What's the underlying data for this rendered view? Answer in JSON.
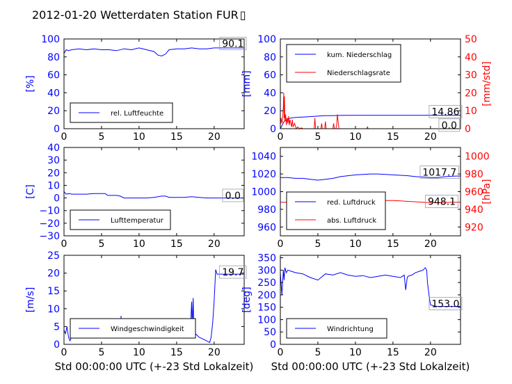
{
  "figure": {
    "title": "2012-01-20 Wetterdaten Station FUR",
    "title_trailing_glyph": "▯",
    "colors": {
      "primary": "#0000ff",
      "secondary": "#ff0000",
      "axis": "#000000"
    }
  },
  "chart_data": [
    {
      "type": "line",
      "xlim": [
        0,
        24
      ],
      "xticks": [
        "0",
        "5",
        "10",
        "15",
        "20"
      ],
      "ylabel": "[%]",
      "ylim": [
        0,
        100
      ],
      "yticks": [
        "0",
        "20",
        "40",
        "60",
        "80",
        "100"
      ],
      "legend": {
        "placement": "lower-left",
        "entries": [
          "rel. Luftfeuchte"
        ]
      },
      "annotations": [
        {
          "text": "90.1",
          "x": 22.5,
          "y": 95
        }
      ],
      "series": [
        {
          "name": "rel. Luftfeuchte",
          "color": "#0000ff",
          "x": [
            0,
            0.3,
            0.6,
            1,
            2,
            3,
            4,
            5,
            6,
            7,
            8,
            9,
            10,
            11,
            12,
            12.5,
            13,
            13.5,
            14,
            15,
            16,
            17,
            18,
            19,
            20,
            21,
            22,
            23,
            24
          ],
          "values": [
            84,
            88,
            87,
            88,
            89,
            88,
            89,
            88,
            88,
            87,
            89,
            88,
            90,
            88,
            86,
            82,
            81,
            83,
            88,
            89,
            89,
            90,
            89,
            89,
            90,
            90,
            90,
            90,
            90
          ]
        }
      ]
    },
    {
      "type": "line",
      "xlim": [
        0,
        24
      ],
      "xticks": [
        "0",
        "5",
        "10",
        "15",
        "20"
      ],
      "ylabel": "[mm]",
      "ylim": [
        0,
        100
      ],
      "yticks": [
        "0",
        "20",
        "40",
        "60",
        "80",
        "100"
      ],
      "ylabel2": "[mm/std]",
      "ylim2": [
        0,
        50
      ],
      "yticks2": [
        "0",
        "10",
        "20",
        "30",
        "40",
        "50"
      ],
      "legend": {
        "placement": "upper-left",
        "entries": [
          "kum. Niederschlag",
          "Niederschlagsrate"
        ]
      },
      "annotations": [
        {
          "text": "14.86",
          "x": 22,
          "y": 19
        },
        {
          "text": "0.0",
          "x": 22.5,
          "y": 4
        }
      ],
      "series": [
        {
          "name": "kum. Niederschlag",
          "axis": "left",
          "color": "#0000ff",
          "x": [
            0,
            0.5,
            1,
            1.5,
            2,
            3,
            4,
            5,
            6,
            7,
            8,
            9,
            10,
            12,
            15,
            18,
            20,
            22,
            24
          ],
          "values": [
            0,
            8,
            11,
            12,
            12.5,
            13,
            13.5,
            14,
            14.5,
            14.6,
            14.8,
            14.86,
            14.86,
            14.86,
            14.86,
            14.86,
            14.86,
            14.86,
            14.86
          ]
        },
        {
          "name": "Niederschlagsrate",
          "axis": "right",
          "color": "#ff0000",
          "x": [
            0,
            0.1,
            0.2,
            0.3,
            0.4,
            0.45,
            0.5,
            0.55,
            0.6,
            0.7,
            0.8,
            0.9,
            1.0,
            1.1,
            1.2,
            1.3,
            1.5,
            1.6,
            1.7,
            1.9,
            2.1,
            2.3,
            2.6,
            2.8,
            3.0,
            3.5,
            4.0,
            4.5,
            4.6,
            4.7,
            5.0,
            5.4,
            5.5,
            5.6,
            5.9,
            6.0,
            6.1,
            6.5,
            7.0,
            7.1,
            7.2,
            7.4,
            7.5,
            7.6,
            7.8,
            8.0,
            9.0,
            11.5,
            11.6,
            11.7,
            12.0,
            24
          ],
          "values": [
            2,
            6,
            3,
            5,
            12,
            20,
            6,
            18,
            4,
            8,
            2,
            6,
            3,
            7,
            2,
            5,
            1,
            5,
            1,
            3,
            0,
            1,
            0,
            0.5,
            0,
            0,
            0,
            0,
            6,
            0,
            0,
            0,
            3,
            0,
            0,
            4,
            0,
            0,
            0,
            3,
            0,
            0,
            2,
            8,
            0,
            0,
            0,
            0,
            1,
            0,
            0,
            0
          ]
        }
      ]
    },
    {
      "type": "line",
      "xlim": [
        0,
        24
      ],
      "xticks": [
        "0",
        "5",
        "10",
        "15",
        "20"
      ],
      "ylabel": "[C]",
      "ylim": [
        -30,
        40
      ],
      "yticks": [
        "−30",
        "−20",
        "−10",
        "0",
        "10",
        "20",
        "30",
        "40"
      ],
      "legend": {
        "placement": "lower-left",
        "entries": [
          "Lufttemperatur"
        ]
      },
      "annotations": [
        {
          "text": "0.0",
          "x": 22.5,
          "y": 2
        }
      ],
      "series": [
        {
          "name": "Lufttemperatur",
          "color": "#0000ff",
          "x": [
            0,
            0.3,
            0.7,
            1,
            2,
            3,
            4,
            5,
            5.5,
            5.8,
            6,
            7,
            7.5,
            8,
            9,
            10,
            11,
            12,
            13,
            13.5,
            14,
            15,
            16,
            17,
            18,
            19,
            20,
            21,
            22,
            23,
            24
          ],
          "values": [
            5,
            3,
            3.5,
            3,
            3,
            3,
            3.5,
            3.5,
            3.5,
            2,
            2,
            2,
            1.5,
            0,
            0,
            0,
            0,
            0.5,
            1.5,
            1.5,
            0.5,
            0.5,
            0.5,
            1,
            0.5,
            0,
            0,
            0,
            0,
            0,
            0
          ]
        }
      ]
    },
    {
      "type": "line",
      "xlim": [
        0,
        24
      ],
      "xticks": [
        "0",
        "5",
        "10",
        "15",
        "20"
      ],
      "ylabel": "",
      "ylim": [
        950,
        1050
      ],
      "yticks": [
        "960",
        "980",
        "1000",
        "1020",
        "1040"
      ],
      "ylabel2": "[hPa]",
      "ylim2": [
        910,
        1010
      ],
      "yticks2": [
        "920",
        "940",
        "960",
        "980",
        "1000"
      ],
      "legend": {
        "placement": "lower-left",
        "entries": [
          "red. Luftdruck",
          "abs. Luftdruck"
        ]
      },
      "annotations": [
        {
          "text": "1017.7",
          "x": 21.2,
          "y": 1022
        },
        {
          "text": "948.1",
          "x": 21.5,
          "y": 989
        }
      ],
      "series": [
        {
          "name": "red. Luftdruck",
          "axis": "left",
          "color": "#0000ff",
          "x": [
            0,
            1,
            2,
            3,
            4,
            5,
            6,
            7,
            8,
            9,
            10,
            11,
            12,
            13,
            14,
            15,
            16,
            17,
            18,
            19,
            20,
            21,
            22,
            23,
            24
          ],
          "values": [
            1016,
            1016,
            1015,
            1015,
            1014,
            1013,
            1014,
            1015,
            1017,
            1018,
            1019,
            1019.5,
            1020,
            1020,
            1019.5,
            1019,
            1018.5,
            1018,
            1017,
            1016.5,
            1016,
            1016,
            1017,
            1017.5,
            1017.7
          ]
        },
        {
          "name": "abs. Luftdruck",
          "axis": "right",
          "color": "#ff0000",
          "x": [
            0,
            1,
            2,
            3,
            4,
            5,
            6,
            7,
            8,
            9,
            10,
            11,
            12,
            13,
            14,
            15,
            16,
            17,
            18,
            19,
            20,
            21,
            22,
            23,
            24
          ],
          "values": [
            948,
            948,
            947,
            947,
            946,
            945,
            946,
            947,
            948,
            949,
            950,
            950,
            950.5,
            950.5,
            950,
            950,
            949.5,
            949,
            948.5,
            948,
            947.5,
            947.5,
            947.8,
            948,
            948.1
          ]
        }
      ]
    },
    {
      "type": "line",
      "xlim": [
        0,
        24
      ],
      "xticks": [
        "0",
        "5",
        "10",
        "15",
        "20"
      ],
      "xlabel": "Std 00:00:00 UTC (+-23 Std Lokalzeit)",
      "ylabel": "[m/s]",
      "ylim": [
        0,
        25
      ],
      "yticks": [
        "0",
        "5",
        "10",
        "15",
        "20",
        "25"
      ],
      "legend": {
        "placement": "lower-left",
        "entries": [
          "Windgeschwindigkeit"
        ]
      },
      "annotations": [
        {
          "text": "19.7",
          "x": 22.5,
          "y": 20.3
        }
      ],
      "series": [
        {
          "name": "Windgeschwindigkeit",
          "color": "#0000ff",
          "x": [
            0,
            0.2,
            0.4,
            0.6,
            0.8,
            1.0,
            1.5,
            2,
            3,
            4,
            5,
            6,
            7,
            7.5,
            7.6,
            7.7,
            8,
            10,
            12,
            14,
            15,
            16,
            16.8,
            17,
            17.1,
            17.2,
            17.3,
            17.5,
            18,
            18.5,
            19,
            19.4,
            19.6,
            19.8,
            20,
            20.2,
            20.4,
            21,
            22,
            23,
            24
          ],
          "values": [
            4,
            3,
            5,
            2,
            1,
            2,
            2,
            2,
            2,
            2,
            2,
            2,
            2,
            2,
            8,
            2,
            2,
            2,
            2,
            2,
            2,
            2,
            2,
            12,
            4,
            13,
            5,
            3,
            2,
            1.5,
            1,
            0.5,
            2,
            6,
            12,
            21,
            19.7,
            19.7,
            19.7,
            19.7,
            19.7
          ]
        }
      ]
    },
    {
      "type": "line",
      "xlim": [
        0,
        24
      ],
      "xticks": [
        "0",
        "5",
        "10",
        "15",
        "20"
      ],
      "xlabel": "Std 00:00:00 UTC (+-23 Std Lokalzeit)",
      "ylabel": "[deg]",
      "ylim": [
        0,
        360
      ],
      "yticks": [
        "0",
        "50",
        "100",
        "150",
        "200",
        "250",
        "300",
        "350"
      ],
      "legend": {
        "placement": "lower-left",
        "entries": [
          "Windrichtung"
        ]
      },
      "annotations": [
        {
          "text": "153.0",
          "x": 22,
          "y": 165
        }
      ],
      "series": [
        {
          "name": "Windrichtung",
          "color": "#0000ff",
          "x": [
            0,
            0.2,
            0.4,
            0.5,
            0.6,
            0.8,
            1,
            1.5,
            2,
            3,
            4,
            5,
            6,
            7,
            8,
            9,
            10,
            11,
            12,
            13,
            14,
            15,
            16,
            16.5,
            16.7,
            16.9,
            17,
            17.5,
            18,
            18.5,
            19,
            19.3,
            19.5,
            19.6,
            19.8,
            20,
            20.5,
            21,
            22,
            23,
            24
          ],
          "values": [
            290,
            200,
            300,
            260,
            310,
            290,
            300,
            295,
            290,
            285,
            270,
            260,
            285,
            280,
            290,
            280,
            275,
            278,
            270,
            275,
            280,
            275,
            270,
            280,
            220,
            270,
            275,
            280,
            290,
            295,
            300,
            310,
            300,
            250,
            200,
            160,
            155,
            153,
            153,
            153,
            153
          ]
        }
      ]
    }
  ]
}
